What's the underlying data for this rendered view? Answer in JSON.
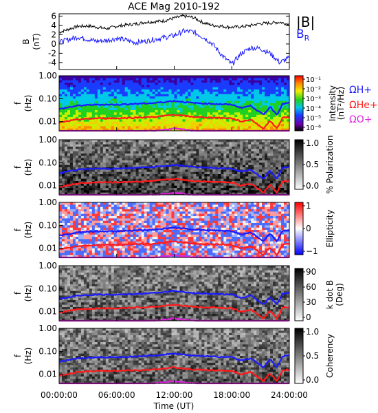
{
  "title": "ACE Mag 2010-192",
  "colors": {
    "black": "#000000",
    "blue": "#1a1aff",
    "red": "#ff1a1a",
    "magenta": "#e020e0"
  },
  "chart_data": [
    {
      "type": "line",
      "panel": "B field",
      "ylabel": "B",
      "yunit": "(nT)",
      "ylim": [
        -5.5,
        6.5
      ],
      "yticks": [
        "-4",
        "-2",
        "0",
        "2",
        "4",
        "6"
      ],
      "series": [
        {
          "name": "|B|",
          "color": "#000000",
          "x": [
            0,
            1,
            2,
            3,
            4,
            5,
            6,
            7,
            8,
            9,
            10,
            11,
            12,
            13,
            14,
            15,
            16,
            17,
            18,
            19,
            20,
            21,
            22,
            23,
            24
          ],
          "values": [
            2.5,
            3.2,
            3.8,
            3.9,
            3.6,
            3.3,
            3.8,
            4.1,
            4.3,
            4.7,
            4.8,
            5.0,
            5.6,
            6.0,
            5.7,
            4.6,
            4.0,
            3.8,
            3.6,
            3.7,
            4.0,
            4.4,
            4.5,
            4.7,
            4.2
          ]
        },
        {
          "name": "B_R",
          "color": "#1a1aff",
          "x": [
            0,
            1,
            2,
            3,
            4,
            5,
            6,
            7,
            8,
            9,
            10,
            11,
            12,
            13,
            14,
            15,
            16,
            17,
            18,
            19,
            20,
            21,
            22,
            23,
            24
          ],
          "values": [
            0.3,
            1.0,
            1.5,
            1.0,
            0.6,
            0.8,
            1.2,
            0.8,
            0.3,
            0.6,
            1.0,
            1.4,
            1.8,
            2.8,
            2.6,
            1.5,
            0.0,
            -2.5,
            -4.4,
            -2.0,
            -0.8,
            -1.0,
            -2.0,
            -4.0,
            -3.0
          ]
        }
      ]
    },
    {
      "type": "heatmap",
      "panel": "Intensity",
      "ylabel": "f",
      "yunit": "(Hz)",
      "yscale": "log",
      "ylim": [
        0.004,
        1.0
      ],
      "yticks": [
        "1.00",
        "0.10",
        "0.01"
      ],
      "colorbar": {
        "label": "Intensity",
        "unit": "(nT²/Hz)",
        "ticks": [
          "10⁻¹",
          "10⁻²",
          "10⁻³",
          "10⁻⁴",
          "10⁻⁵",
          "10⁻⁶"
        ]
      }
    },
    {
      "type": "heatmap",
      "panel": "% Polarization",
      "ylabel": "f",
      "yunit": "(Hz)",
      "yscale": "log",
      "ylim": [
        0.004,
        1.0
      ],
      "yticks": [
        "1.00",
        "0.10",
        "0.01"
      ],
      "colorbar": {
        "label": "% Polarization",
        "unit": "",
        "ticks": [
          "1.0",
          "0.5",
          "0.0"
        ]
      }
    },
    {
      "type": "heatmap",
      "panel": "Ellipticity",
      "ylabel": "f",
      "yunit": "(Hz)",
      "yscale": "log",
      "ylim": [
        0.004,
        1.0
      ],
      "yticks": [
        "1.00",
        "0.10",
        "0.01"
      ],
      "colorbar": {
        "label": "Ellipticity",
        "unit": "",
        "ticks": [
          "1",
          "0",
          "−1"
        ]
      }
    },
    {
      "type": "heatmap",
      "panel": "k dot B",
      "ylabel": "f",
      "yunit": "(Hz)",
      "yscale": "log",
      "ylim": [
        0.004,
        1.0
      ],
      "yticks": [
        "1.00",
        "0.10",
        "0.01"
      ],
      "colorbar": {
        "label": "k dot B",
        "unit": "(Deg)",
        "ticks": [
          "90",
          "60",
          "30",
          "0"
        ]
      }
    },
    {
      "type": "heatmap",
      "panel": "Coherency",
      "ylabel": "f",
      "yunit": "(Hz)",
      "yscale": "log",
      "ylim": [
        0.004,
        1.0
      ],
      "yticks": [
        "1.00",
        "0.10",
        "0.01"
      ],
      "colorbar": {
        "label": "Coherency",
        "unit": "",
        "ticks": [
          "1.0",
          "0.5",
          "0.0"
        ]
      }
    }
  ],
  "gyrofrequencies": {
    "legend": [
      "ΩH+",
      "ΩHe+",
      "ΩO+"
    ],
    "x": [
      0,
      2,
      4,
      6,
      8,
      10,
      12,
      14,
      16,
      18,
      19,
      20,
      20.7,
      21.3,
      22,
      22.7,
      23.3,
      24
    ],
    "H+": [
      0.035,
      0.05,
      0.055,
      0.055,
      0.06,
      0.065,
      0.08,
      0.065,
      0.06,
      0.055,
      0.04,
      0.05,
      0.03,
      0.02,
      0.045,
      0.02,
      0.06,
      0.065
    ],
    "He+": [
      0.009,
      0.0125,
      0.014,
      0.014,
      0.015,
      0.016,
      0.02,
      0.016,
      0.015,
      0.014,
      0.01,
      0.0125,
      0.0075,
      0.005,
      0.011,
      0.005,
      0.015,
      0.016
    ],
    "O+": [
      0.0022,
      0.0031,
      0.0034,
      0.0034,
      0.0037,
      0.004,
      0.005,
      0.004,
      0.0037,
      0.0034,
      0.0025,
      0.0031,
      0.0019,
      0.0012,
      0.0028,
      0.0012,
      0.0037,
      0.004
    ]
  },
  "xaxis": {
    "label": "Time (UT)",
    "ticks": [
      "00:00:00",
      "06:00:00",
      "12:00:00",
      "18:00:00",
      "24:00:00"
    ],
    "tick_hours": [
      0,
      6,
      12,
      18,
      24
    ]
  },
  "b_legend": {
    "magnitude": "|B|",
    "radial": "B",
    "radial_sub": "R"
  }
}
